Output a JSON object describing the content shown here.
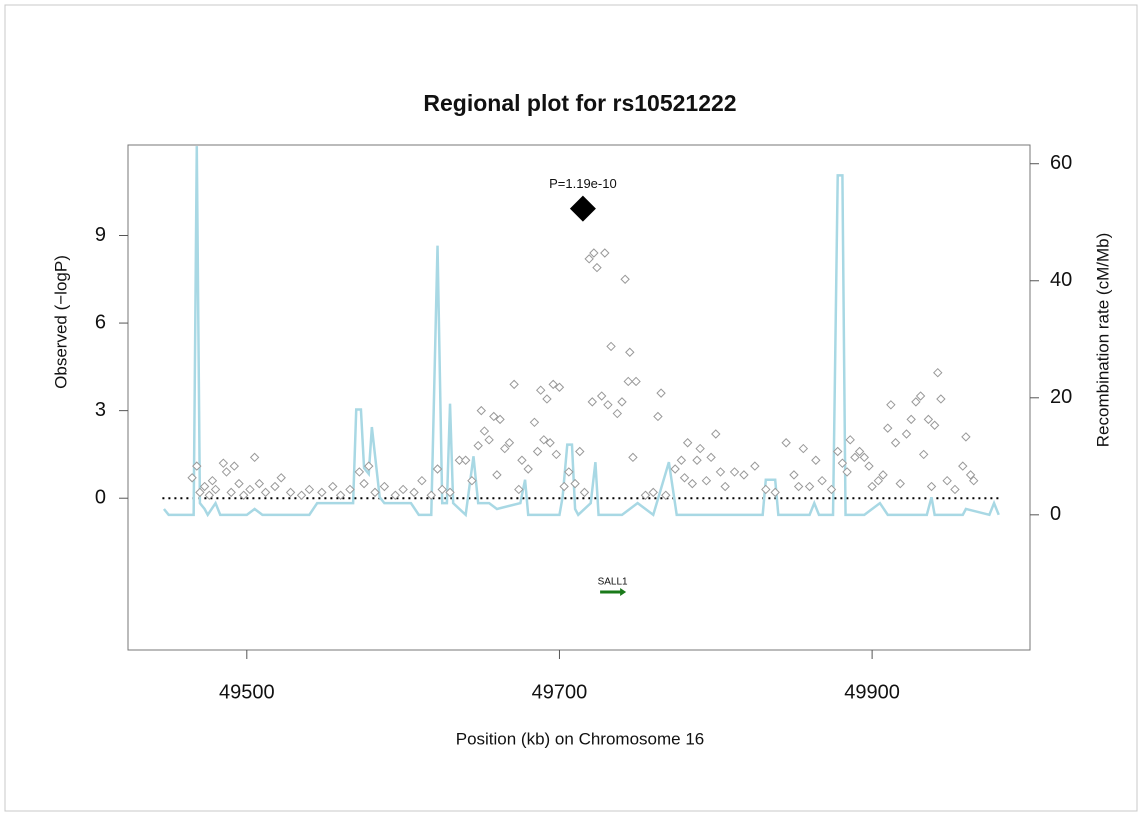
{
  "chart_data": {
    "type": "scatter",
    "title": "Regional plot for rs10521222",
    "x_label": "Position (kb) on Chromosome 16",
    "y_label": "Observed (−logP)",
    "y2_label": "Recombination rate (cM/Mb)",
    "xlim": [
      49424,
      50001
    ],
    "ylim": [
      -5.2,
      12.1
    ],
    "y2lim": [
      -23.1,
      63.2
    ],
    "xticks": [
      49500,
      49700,
      49900
    ],
    "yticks": [
      0,
      3,
      6,
      9
    ],
    "y2ticks": [
      0,
      20,
      40,
      60
    ],
    "point_color": "#999999",
    "points": {
      "x": [
        49465,
        49468,
        49470,
        49473,
        49476,
        49478,
        49480,
        49485,
        49487,
        49490,
        49492,
        49495,
        49498,
        49502,
        49505,
        49508,
        49512,
        49518,
        49522,
        49528,
        49535,
        49540,
        49548,
        49555,
        49560,
        49566,
        49572,
        49575,
        49578,
        49582,
        49588,
        49595,
        49600,
        49607,
        49612,
        49618,
        49622,
        49625,
        49630,
        49636,
        49640,
        49644,
        49648,
        49650,
        49652,
        49655,
        49658,
        49660,
        49662,
        49665,
        49668,
        49671,
        49674,
        49676,
        49680,
        49684,
        49686,
        49688,
        49690,
        49692,
        49694,
        49696,
        49698,
        49700,
        49703,
        49706,
        49710,
        49713,
        49716,
        49719,
        49721,
        49722,
        49724,
        49727,
        49729,
        49731,
        49733,
        49737,
        49740,
        49742,
        49744,
        49745,
        49747,
        49749,
        49755,
        49760,
        49763,
        49765,
        49768,
        49774,
        49778,
        49780,
        49782,
        49785,
        49788,
        49790,
        49794,
        49797,
        49800,
        49803,
        49806,
        49812,
        49818,
        49825,
        49832,
        49838,
        49845,
        49850,
        49853,
        49856,
        49860,
        49864,
        49868,
        49874,
        49878,
        49881,
        49884,
        49886,
        49889,
        49892,
        49895,
        49898,
        49900,
        49904,
        49907,
        49910,
        49912,
        49915,
        49918,
        49922,
        49925,
        49928,
        49931,
        49933,
        49936,
        49938,
        49940,
        49942,
        49944,
        49948,
        49953,
        49958,
        49960,
        49963,
        49965
      ],
      "y": [
        0.7,
        1.1,
        0.2,
        0.4,
        0.1,
        0.6,
        0.3,
        1.2,
        0.9,
        0.2,
        1.1,
        0.5,
        0.1,
        0.3,
        1.4,
        0.5,
        0.2,
        0.4,
        0.7,
        0.2,
        0.1,
        0.3,
        0.2,
        0.4,
        0.1,
        0.3,
        0.9,
        0.5,
        1.1,
        0.2,
        0.4,
        0.1,
        0.3,
        0.2,
        0.6,
        0.1,
        1.0,
        0.3,
        0.2,
        1.3,
        1.3,
        0.6,
        1.8,
        3.0,
        2.3,
        2.0,
        2.8,
        0.8,
        2.7,
        1.7,
        1.9,
        3.9,
        0.3,
        1.3,
        1.0,
        2.6,
        1.6,
        3.7,
        2.0,
        3.4,
        1.9,
        3.9,
        1.5,
        3.8,
        0.4,
        0.9,
        0.5,
        1.6,
        0.2,
        8.2,
        3.3,
        8.4,
        7.9,
        3.5,
        8.4,
        3.2,
        5.2,
        2.9,
        3.3,
        7.5,
        4.0,
        5.0,
        1.4,
        4.0,
        0.1,
        0.2,
        2.8,
        3.6,
        0.1,
        1.0,
        1.3,
        0.7,
        1.9,
        0.5,
        1.3,
        1.7,
        0.6,
        1.4,
        2.2,
        0.9,
        0.4,
        0.9,
        0.8,
        1.1,
        0.3,
        0.2,
        1.9,
        0.8,
        0.4,
        1.7,
        0.4,
        1.3,
        0.6,
        0.3,
        1.6,
        1.2,
        0.9,
        2.0,
        1.4,
        1.6,
        1.4,
        1.1,
        0.4,
        0.6,
        0.8,
        2.4,
        3.2,
        1.9,
        0.5,
        2.2,
        2.7,
        3.3,
        3.5,
        1.5,
        2.7,
        0.4,
        2.5,
        4.3,
        3.4,
        0.6,
        0.3,
        1.1,
        2.1,
        0.8,
        0.6
      ]
    },
    "lead_snp": {
      "x": 49715,
      "y": 9.92,
      "label": "P=1.19e-10",
      "color": "#000000"
    },
    "recombination": {
      "axis": "y2",
      "color": "#a8d8e4",
      "x": [
        49447,
        49450,
        49466,
        49468,
        49470,
        49473,
        49475,
        49480,
        49483,
        49500,
        49505,
        49510,
        49540,
        49545,
        49568,
        49570,
        49573,
        49575,
        49578,
        49580,
        49585,
        49588,
        49605,
        49610,
        49618,
        49622,
        49625,
        49628,
        49630,
        49632,
        49640,
        49645,
        49648,
        49655,
        49660,
        49675,
        49678,
        49680,
        49700,
        49702,
        49705,
        49708,
        49710,
        49712,
        49720,
        49723,
        49725,
        49740,
        49750,
        49760,
        49770,
        49775,
        49830,
        49832,
        49838,
        49840,
        49860,
        49863,
        49866,
        49875,
        49878,
        49881,
        49883,
        49895,
        49905,
        49910,
        49935,
        49938,
        49940,
        49958,
        49960,
        49975,
        49978,
        49981
      ],
      "values": [
        1,
        0,
        0,
        63,
        2,
        1,
        0,
        2,
        0,
        0,
        1,
        0,
        0,
        2,
        2,
        18,
        18,
        8,
        7,
        15,
        3,
        2,
        2,
        0,
        0,
        46,
        2,
        2,
        19,
        2,
        0,
        10,
        2,
        2,
        1,
        2,
        6,
        0,
        0,
        3,
        12,
        12,
        1,
        0,
        2,
        9,
        0,
        0,
        2,
        0,
        9,
        0,
        0,
        6,
        6,
        0,
        0,
        2,
        0,
        0,
        58,
        58,
        0,
        0,
        2,
        0,
        0,
        3,
        0,
        0,
        1,
        0,
        2,
        0
      ]
    },
    "hline": 0,
    "hline_x": [
      49446,
      49981
    ],
    "genes": [
      {
        "name": "SALL1",
        "start": 49726,
        "end": 49742,
        "color": "#1a7a1a"
      }
    ]
  }
}
